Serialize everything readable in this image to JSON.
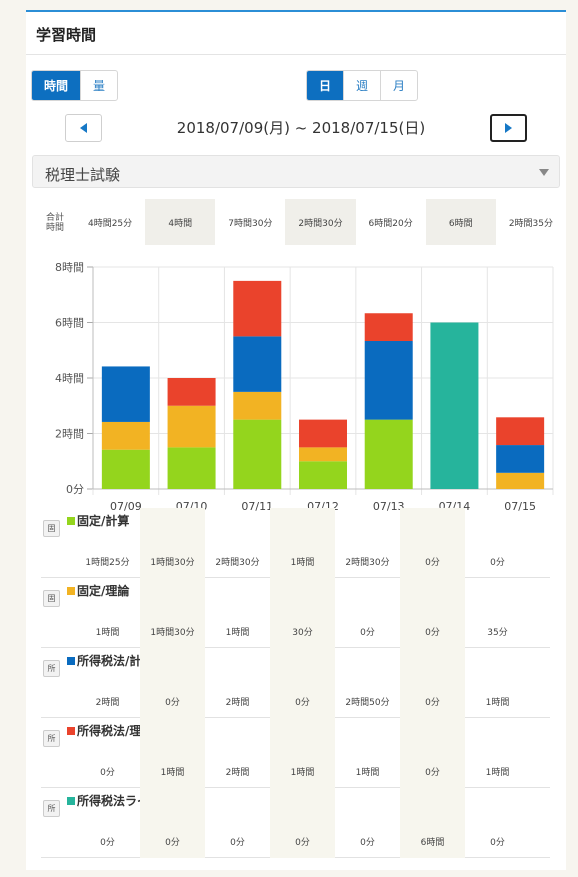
{
  "header": {
    "title": "学習時間"
  },
  "mode_toggle": [
    {
      "label": "時間",
      "active": true
    },
    {
      "label": "量",
      "active": false
    }
  ],
  "period_toggle": [
    {
      "label": "日",
      "active": true
    },
    {
      "label": "週",
      "active": false
    },
    {
      "label": "月",
      "active": false
    }
  ],
  "date_range": "2018/07/09(月) ~ 2018/07/15(日)",
  "subject_select": {
    "value": "税理士試験"
  },
  "totals": {
    "label": "合計時間",
    "values": [
      "4時間25分",
      "4時間",
      "7時間30分",
      "2時間30分",
      "6時間20分",
      "6時間",
      "2時間35分"
    ]
  },
  "colors": {
    "fixed_calc": "#94d51d",
    "fixed_theory": "#f2b323",
    "income_calc": "#0a6bbf",
    "income_theory": "#ea432c",
    "income_live": "#26b49c",
    "shade": "#f0efea",
    "accent": "#0d6fc0"
  },
  "chart_data": {
    "type": "bar",
    "stacked": true,
    "categories": [
      "07/09",
      "07/10",
      "07/11",
      "07/12",
      "07/13",
      "07/14",
      "07/15"
    ],
    "y_ticks": [
      "0分",
      "2時間",
      "4時間",
      "6時間",
      "8時間"
    ],
    "ylim": [
      0,
      8
    ],
    "series": [
      {
        "name": "固定/計算",
        "color": "#94d51d",
        "values": [
          1.4167,
          1.5,
          2.5,
          1.0,
          2.5,
          0,
          0
        ]
      },
      {
        "name": "固定/理論",
        "color": "#f2b323",
        "values": [
          1.0,
          1.5,
          1.0,
          0.5,
          0,
          0,
          0.5833
        ]
      },
      {
        "name": "所得税法/計算",
        "color": "#0a6bbf",
        "values": [
          2.0,
          0,
          2.0,
          0,
          2.8333,
          0,
          1.0
        ]
      },
      {
        "name": "所得税法/理論",
        "color": "#ea432c",
        "values": [
          0,
          1.0,
          2.0,
          1.0,
          1.0,
          0,
          1.0
        ]
      },
      {
        "name": "所得税法ライブ授業",
        "color": "#26b49c",
        "values": [
          0,
          0,
          0,
          0,
          0,
          6.0,
          0
        ]
      }
    ]
  },
  "breakdown": [
    {
      "badge": "固",
      "name": "固定/計算",
      "color": "#94d51d",
      "values": [
        "1時間25分",
        "1時間30分",
        "2時間30分",
        "1時間",
        "2時間30分",
        "0分",
        "0分"
      ]
    },
    {
      "badge": "固",
      "name": "固定/理論",
      "color": "#f2b323",
      "values": [
        "1時間",
        "1時間30分",
        "1時間",
        "30分",
        "0分",
        "0分",
        "35分"
      ]
    },
    {
      "badge": "所",
      "name": "所得税法/計算",
      "color": "#0a6bbf",
      "values": [
        "2時間",
        "0分",
        "2時間",
        "0分",
        "2時間50分",
        "0分",
        "1時間"
      ]
    },
    {
      "badge": "所",
      "name": "所得税法/理論",
      "color": "#ea432c",
      "values": [
        "0分",
        "1時間",
        "2時間",
        "1時間",
        "1時間",
        "0分",
        "1時間"
      ]
    },
    {
      "badge": "所",
      "name": "所得税法ライブ授業",
      "color": "#26b49c",
      "values": [
        "0分",
        "0分",
        "0分",
        "0分",
        "0分",
        "6時間",
        "0分"
      ]
    }
  ]
}
